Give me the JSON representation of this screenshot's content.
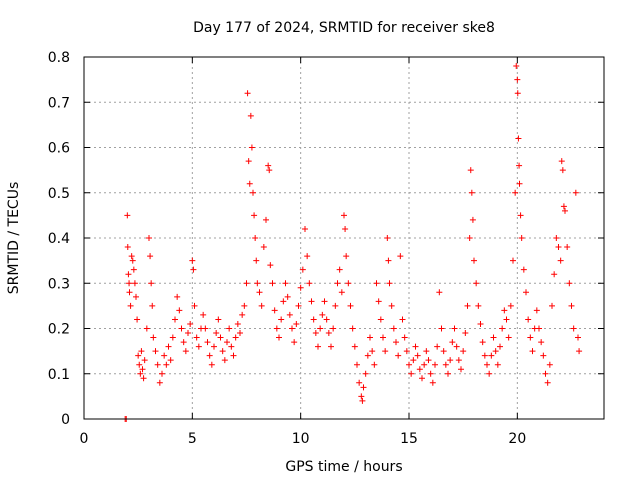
{
  "chart_data": {
    "type": "scatter",
    "title": "Day 177 of 2024, SRMTID for receiver ske8",
    "xlabel": "GPS time / hours",
    "ylabel": "SRMTID / TECUs",
    "xlim": [
      0,
      24
    ],
    "ylim": [
      0,
      0.8
    ],
    "xticks": [
      0,
      5,
      10,
      15,
      20
    ],
    "xtick_labels": [
      "0",
      "5",
      "10",
      "15",
      "20"
    ],
    "yticks": [
      0,
      0.1,
      0.2,
      0.3,
      0.4,
      0.5,
      0.6,
      0.7,
      0.8
    ],
    "ytick_labels": [
      "0",
      "0.1",
      "0.2",
      "0.3",
      "0.4",
      "0.5",
      "0.6",
      "0.7",
      "0.8"
    ],
    "grid": true,
    "marker": "+",
    "marker_color": "#ff0000",
    "series": [
      {
        "name": "SRMTID",
        "points": [
          [
            1.9,
            0.0
          ],
          [
            1.95,
            0.0
          ],
          [
            2.0,
            0.45
          ],
          [
            2.02,
            0.38
          ],
          [
            2.05,
            0.32
          ],
          [
            2.08,
            0.3
          ],
          [
            2.1,
            0.28
          ],
          [
            2.15,
            0.25
          ],
          [
            2.2,
            0.36
          ],
          [
            2.25,
            0.35
          ],
          [
            2.3,
            0.33
          ],
          [
            2.35,
            0.3
          ],
          [
            2.4,
            0.27
          ],
          [
            2.45,
            0.22
          ],
          [
            2.5,
            0.14
          ],
          [
            2.55,
            0.12
          ],
          [
            2.6,
            0.1
          ],
          [
            2.65,
            0.15
          ],
          [
            2.7,
            0.11
          ],
          [
            2.75,
            0.09
          ],
          [
            2.8,
            0.13
          ],
          [
            2.9,
            0.2
          ],
          [
            3.0,
            0.4
          ],
          [
            3.05,
            0.36
          ],
          [
            3.1,
            0.3
          ],
          [
            3.15,
            0.25
          ],
          [
            3.2,
            0.18
          ],
          [
            3.3,
            0.15
          ],
          [
            3.4,
            0.12
          ],
          [
            3.5,
            0.08
          ],
          [
            3.6,
            0.1
          ],
          [
            3.7,
            0.14
          ],
          [
            3.8,
            0.12
          ],
          [
            3.9,
            0.16
          ],
          [
            4.0,
            0.13
          ],
          [
            4.1,
            0.18
          ],
          [
            4.2,
            0.22
          ],
          [
            4.3,
            0.27
          ],
          [
            4.4,
            0.24
          ],
          [
            4.5,
            0.2
          ],
          [
            4.6,
            0.17
          ],
          [
            4.7,
            0.15
          ],
          [
            4.8,
            0.19
          ],
          [
            4.9,
            0.21
          ],
          [
            5.0,
            0.35
          ],
          [
            5.05,
            0.33
          ],
          [
            5.1,
            0.25
          ],
          [
            5.2,
            0.18
          ],
          [
            5.3,
            0.16
          ],
          [
            5.4,
            0.2
          ],
          [
            5.5,
            0.23
          ],
          [
            5.6,
            0.2
          ],
          [
            5.7,
            0.17
          ],
          [
            5.8,
            0.14
          ],
          [
            5.9,
            0.12
          ],
          [
            6.0,
            0.16
          ],
          [
            6.1,
            0.19
          ],
          [
            6.2,
            0.22
          ],
          [
            6.3,
            0.18
          ],
          [
            6.4,
            0.15
          ],
          [
            6.5,
            0.13
          ],
          [
            6.6,
            0.17
          ],
          [
            6.7,
            0.2
          ],
          [
            6.8,
            0.16
          ],
          [
            6.9,
            0.14
          ],
          [
            7.0,
            0.18
          ],
          [
            7.1,
            0.21
          ],
          [
            7.2,
            0.19
          ],
          [
            7.3,
            0.23
          ],
          [
            7.4,
            0.25
          ],
          [
            7.5,
            0.3
          ],
          [
            7.55,
            0.72
          ],
          [
            7.6,
            0.57
          ],
          [
            7.65,
            0.52
          ],
          [
            7.7,
            0.67
          ],
          [
            7.75,
            0.6
          ],
          [
            7.8,
            0.5
          ],
          [
            7.85,
            0.45
          ],
          [
            7.9,
            0.4
          ],
          [
            7.95,
            0.35
          ],
          [
            8.0,
            0.3
          ],
          [
            8.1,
            0.28
          ],
          [
            8.2,
            0.25
          ],
          [
            8.3,
            0.38
          ],
          [
            8.4,
            0.44
          ],
          [
            8.5,
            0.56
          ],
          [
            8.55,
            0.55
          ],
          [
            8.6,
            0.34
          ],
          [
            8.7,
            0.3
          ],
          [
            8.8,
            0.24
          ],
          [
            8.9,
            0.2
          ],
          [
            9.0,
            0.18
          ],
          [
            9.1,
            0.22
          ],
          [
            9.2,
            0.26
          ],
          [
            9.3,
            0.3
          ],
          [
            9.4,
            0.27
          ],
          [
            9.5,
            0.23
          ],
          [
            9.6,
            0.2
          ],
          [
            9.7,
            0.17
          ],
          [
            9.8,
            0.21
          ],
          [
            9.9,
            0.25
          ],
          [
            10.0,
            0.29
          ],
          [
            10.1,
            0.33
          ],
          [
            10.2,
            0.42
          ],
          [
            10.3,
            0.36
          ],
          [
            10.4,
            0.3
          ],
          [
            10.5,
            0.26
          ],
          [
            10.6,
            0.22
          ],
          [
            10.7,
            0.19
          ],
          [
            10.8,
            0.16
          ],
          [
            10.9,
            0.2
          ],
          [
            11.0,
            0.23
          ],
          [
            11.1,
            0.26
          ],
          [
            11.2,
            0.22
          ],
          [
            11.3,
            0.19
          ],
          [
            11.4,
            0.16
          ],
          [
            11.5,
            0.2
          ],
          [
            11.6,
            0.25
          ],
          [
            11.7,
            0.3
          ],
          [
            11.8,
            0.33
          ],
          [
            11.9,
            0.28
          ],
          [
            12.0,
            0.45
          ],
          [
            12.05,
            0.42
          ],
          [
            12.1,
            0.36
          ],
          [
            12.2,
            0.3
          ],
          [
            12.3,
            0.25
          ],
          [
            12.4,
            0.2
          ],
          [
            12.5,
            0.16
          ],
          [
            12.6,
            0.12
          ],
          [
            12.7,
            0.08
          ],
          [
            12.8,
            0.05
          ],
          [
            12.85,
            0.04
          ],
          [
            12.9,
            0.07
          ],
          [
            13.0,
            0.1
          ],
          [
            13.1,
            0.14
          ],
          [
            13.2,
            0.18
          ],
          [
            13.3,
            0.15
          ],
          [
            13.4,
            0.12
          ],
          [
            13.5,
            0.3
          ],
          [
            13.6,
            0.26
          ],
          [
            13.7,
            0.22
          ],
          [
            13.8,
            0.18
          ],
          [
            13.9,
            0.15
          ],
          [
            14.0,
            0.4
          ],
          [
            14.05,
            0.35
          ],
          [
            14.1,
            0.3
          ],
          [
            14.2,
            0.25
          ],
          [
            14.3,
            0.2
          ],
          [
            14.4,
            0.17
          ],
          [
            14.5,
            0.14
          ],
          [
            14.6,
            0.36
          ],
          [
            14.7,
            0.22
          ],
          [
            14.8,
            0.18
          ],
          [
            14.9,
            0.15
          ],
          [
            15.0,
            0.12
          ],
          [
            15.1,
            0.1
          ],
          [
            15.2,
            0.13
          ],
          [
            15.3,
            0.16
          ],
          [
            15.4,
            0.14
          ],
          [
            15.5,
            0.11
          ],
          [
            15.6,
            0.09
          ],
          [
            15.7,
            0.12
          ],
          [
            15.8,
            0.15
          ],
          [
            15.9,
            0.13
          ],
          [
            16.0,
            0.1
          ],
          [
            16.1,
            0.08
          ],
          [
            16.2,
            0.12
          ],
          [
            16.3,
            0.16
          ],
          [
            16.4,
            0.28
          ],
          [
            16.5,
            0.2
          ],
          [
            16.6,
            0.15
          ],
          [
            16.7,
            0.12
          ],
          [
            16.8,
            0.1
          ],
          [
            16.9,
            0.13
          ],
          [
            17.0,
            0.17
          ],
          [
            17.1,
            0.2
          ],
          [
            17.2,
            0.16
          ],
          [
            17.3,
            0.13
          ],
          [
            17.4,
            0.11
          ],
          [
            17.5,
            0.15
          ],
          [
            17.6,
            0.19
          ],
          [
            17.7,
            0.25
          ],
          [
            17.8,
            0.4
          ],
          [
            17.85,
            0.55
          ],
          [
            17.9,
            0.5
          ],
          [
            17.95,
            0.44
          ],
          [
            18.0,
            0.35
          ],
          [
            18.1,
            0.3
          ],
          [
            18.2,
            0.25
          ],
          [
            18.3,
            0.21
          ],
          [
            18.4,
            0.17
          ],
          [
            18.5,
            0.14
          ],
          [
            18.6,
            0.12
          ],
          [
            18.7,
            0.1
          ],
          [
            18.8,
            0.14
          ],
          [
            18.9,
            0.18
          ],
          [
            19.0,
            0.15
          ],
          [
            19.1,
            0.12
          ],
          [
            19.2,
            0.16
          ],
          [
            19.3,
            0.2
          ],
          [
            19.4,
            0.24
          ],
          [
            19.5,
            0.22
          ],
          [
            19.6,
            0.18
          ],
          [
            19.7,
            0.25
          ],
          [
            19.8,
            0.35
          ],
          [
            19.9,
            0.5
          ],
          [
            19.95,
            0.78
          ],
          [
            20.0,
            0.75
          ],
          [
            20.02,
            0.72
          ],
          [
            20.05,
            0.62
          ],
          [
            20.08,
            0.56
          ],
          [
            20.1,
            0.52
          ],
          [
            20.15,
            0.45
          ],
          [
            20.2,
            0.4
          ],
          [
            20.3,
            0.33
          ],
          [
            20.4,
            0.28
          ],
          [
            20.5,
            0.22
          ],
          [
            20.6,
            0.18
          ],
          [
            20.7,
            0.15
          ],
          [
            20.8,
            0.2
          ],
          [
            20.9,
            0.24
          ],
          [
            21.0,
            0.2
          ],
          [
            21.1,
            0.17
          ],
          [
            21.2,
            0.14
          ],
          [
            21.3,
            0.1
          ],
          [
            21.4,
            0.08
          ],
          [
            21.5,
            0.12
          ],
          [
            21.6,
            0.25
          ],
          [
            21.7,
            0.32
          ],
          [
            21.8,
            0.4
          ],
          [
            21.9,
            0.38
          ],
          [
            22.0,
            0.35
          ],
          [
            22.05,
            0.57
          ],
          [
            22.1,
            0.55
          ],
          [
            22.15,
            0.47
          ],
          [
            22.2,
            0.46
          ],
          [
            22.3,
            0.38
          ],
          [
            22.4,
            0.3
          ],
          [
            22.5,
            0.25
          ],
          [
            22.6,
            0.2
          ],
          [
            22.7,
            0.5
          ],
          [
            22.8,
            0.18
          ],
          [
            22.85,
            0.15
          ]
        ]
      }
    ]
  }
}
